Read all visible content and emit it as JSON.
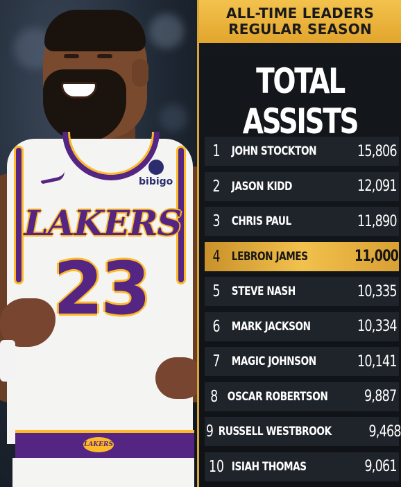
{
  "header": {
    "line1": "ALL-TIME LEADERS",
    "line2": "REGULAR SEASON",
    "title": "TOTAL ASSISTS"
  },
  "photo": {
    "jersey_team": "LAKERS",
    "jersey_number": "23",
    "sponsor": "bibigo",
    "waistband_logo": "LAKERS"
  },
  "colors": {
    "gold": "#f3c24d",
    "purple": "#552583",
    "row_bg": "#1f242b",
    "panel_bg": "#14181d"
  },
  "leaders": [
    {
      "rank": "1",
      "name": "JOHN STOCKTON",
      "assists": "15,806"
    },
    {
      "rank": "2",
      "name": "JASON KIDD",
      "assists": "12,091"
    },
    {
      "rank": "3",
      "name": "CHRIS PAUL",
      "assists": "11,890"
    },
    {
      "rank": "4",
      "name": "LEBRON JAMES",
      "assists": "11,000",
      "highlight": true
    },
    {
      "rank": "5",
      "name": "STEVE NASH",
      "assists": "10,335"
    },
    {
      "rank": "6",
      "name": "MARK JACKSON",
      "assists": "10,334"
    },
    {
      "rank": "7",
      "name": "MAGIC JOHNSON",
      "assists": "10,141"
    },
    {
      "rank": "8",
      "name": "OSCAR ROBERTSON",
      "assists": "9,887"
    },
    {
      "rank": "9",
      "name": "RUSSELL WESTBROOK",
      "assists": "9,468"
    },
    {
      "rank": "10",
      "name": "ISIAH THOMAS",
      "assists": "9,061"
    }
  ]
}
